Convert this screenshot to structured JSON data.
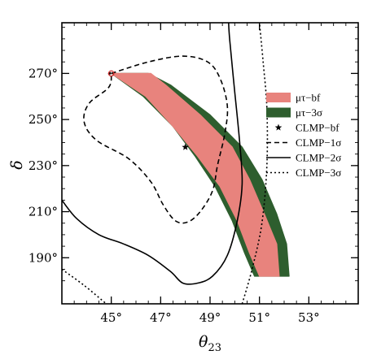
{
  "chart_data": {
    "type": "contour",
    "title": "",
    "xlabel": "θ",
    "xlabel_sub": "23",
    "ylabel": "δ",
    "xlim": [
      43.0,
      55.0
    ],
    "ylim": [
      170,
      292
    ],
    "xticks": [
      {
        "value": 45,
        "label": "45°"
      },
      {
        "value": 47,
        "label": "47°"
      },
      {
        "value": 49,
        "label": "49°"
      },
      {
        "value": 51,
        "label": "51°"
      },
      {
        "value": 53,
        "label": "53°"
      }
    ],
    "yticks": [
      {
        "value": 190,
        "label": "190°"
      },
      {
        "value": 210,
        "label": "210°"
      },
      {
        "value": 230,
        "label": "230°"
      },
      {
        "value": 250,
        "label": "250°"
      },
      {
        "value": 270,
        "label": "270°"
      }
    ],
    "grid": false,
    "legend_position": "right",
    "colors": {
      "mutau_bf": "#e8837d",
      "mutau_3sigma": "#2e5e2e",
      "clmp_marker": "#000000",
      "bf_circle": "#cc2222"
    },
    "legend": [
      {
        "key": "mutau_bf",
        "label": "μτ−bf"
      },
      {
        "key": "mutau_3sigma",
        "label": "μτ−3σ"
      },
      {
        "key": "clmp_bf",
        "label": "CLMP−bf"
      },
      {
        "key": "clmp_1sigma",
        "label": "CLMP−1σ"
      },
      {
        "key": "clmp_2sigma",
        "label": "CLMP−2σ"
      },
      {
        "key": "clmp_3sigma",
        "label": "CLMP−3σ"
      }
    ],
    "series": [
      {
        "key": "mutau_3sigma",
        "points": [
          [
            45.0,
            270
          ],
          [
            46.5,
            270
          ],
          [
            47.4,
            265
          ],
          [
            49.0,
            252
          ],
          [
            50.3,
            238
          ],
          [
            51.1,
            224
          ],
          [
            51.7,
            209
          ],
          [
            52.1,
            196
          ],
          [
            52.2,
            182
          ],
          [
            50.8,
            182
          ],
          [
            50.4,
            192
          ],
          [
            49.9,
            206
          ],
          [
            49.2,
            221
          ],
          [
            48.4,
            234
          ],
          [
            47.5,
            247
          ],
          [
            46.3,
            260
          ]
        ]
      },
      {
        "key": "mutau_bf",
        "points": [
          [
            45.0,
            270
          ],
          [
            46.6,
            270
          ],
          [
            47.2,
            265
          ],
          [
            48.6,
            252
          ],
          [
            49.9,
            238
          ],
          [
            50.6,
            224
          ],
          [
            51.2,
            209
          ],
          [
            51.7,
            196
          ],
          [
            51.8,
            182
          ],
          [
            51.0,
            182
          ],
          [
            50.6,
            192
          ],
          [
            50.1,
            206
          ],
          [
            49.4,
            221
          ],
          [
            48.5,
            234
          ],
          [
            47.5,
            247
          ],
          [
            46.4,
            260
          ]
        ]
      },
      {
        "key": "clmp_1sigma",
        "points": [
          [
            45.0,
            270
          ],
          [
            46.5,
            275
          ],
          [
            47.9,
            277.5
          ],
          [
            48.9,
            275
          ],
          [
            49.4,
            268
          ],
          [
            49.7,
            256
          ],
          [
            49.6,
            244
          ],
          [
            49.3,
            230
          ],
          [
            49.1,
            219
          ],
          [
            48.6,
            210
          ],
          [
            48.1,
            205.5
          ],
          [
            47.6,
            206
          ],
          [
            47.1,
            213
          ],
          [
            46.6,
            223
          ],
          [
            45.7,
            233
          ],
          [
            44.4,
            241
          ],
          [
            43.9,
            249
          ],
          [
            44.1,
            257
          ],
          [
            44.9,
            264
          ],
          [
            45.0,
            270
          ]
        ]
      },
      {
        "key": "clmp_2sigma",
        "points": [
          [
            43.0,
            215
          ],
          [
            43.6,
            207
          ],
          [
            44.5,
            200
          ],
          [
            45.5,
            196
          ],
          [
            46.5,
            191
          ],
          [
            47.4,
            184
          ],
          [
            47.9,
            179
          ],
          [
            48.5,
            179
          ],
          [
            49.1,
            182
          ],
          [
            49.7,
            191
          ],
          [
            50.1,
            206
          ],
          [
            50.3,
            222
          ],
          [
            50.2,
            240
          ],
          [
            50.0,
            262
          ],
          [
            49.8,
            284
          ],
          [
            49.75,
            292
          ]
        ]
      },
      {
        "key": "clmp_3sigma",
        "points": [
          [
            43.0,
            185
          ],
          [
            43.9,
            178
          ],
          [
            44.8,
            170
          ]
        ]
      },
      {
        "key": "clmp_3sigma",
        "points": [
          [
            50.3,
            170
          ],
          [
            50.7,
            185
          ],
          [
            51.1,
            205
          ],
          [
            51.3,
            230
          ],
          [
            51.3,
            255
          ],
          [
            51.15,
            275
          ],
          [
            51.0,
            292
          ]
        ]
      }
    ],
    "markers": [
      {
        "key": "clmp_bf",
        "symbol": "star",
        "x": 48.0,
        "y": 238
      },
      {
        "key": "mutau_bf_point",
        "symbol": "open-circle",
        "x": 45.0,
        "y": 270
      }
    ]
  }
}
